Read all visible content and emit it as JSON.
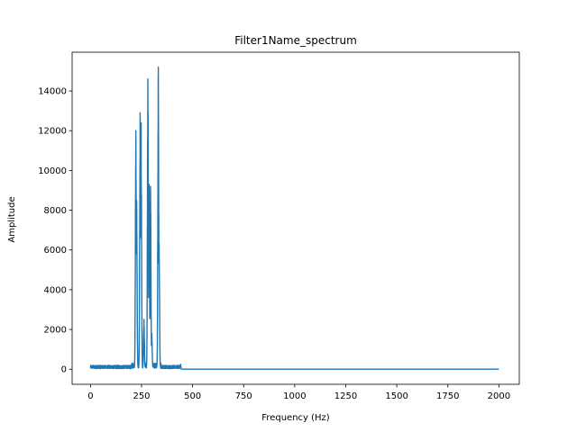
{
  "chart_data": {
    "type": "line",
    "title": "Filter1Name_spectrum",
    "xlabel": "Frequency (Hz)",
    "ylabel": "Amplitude",
    "xlim": [
      -90,
      2100
    ],
    "ylim": [
      -760,
      15950
    ],
    "xticks": [
      0,
      250,
      500,
      750,
      1000,
      1250,
      1500,
      1750,
      2000
    ],
    "yticks": [
      0,
      2000,
      4000,
      6000,
      8000,
      10000,
      12000,
      14000
    ],
    "grid": false,
    "legend": "none",
    "line_color": "#1f77b4",
    "series": [
      {
        "name": "spectrum",
        "noise_floor": {
          "x_range": [
            0,
            440
          ],
          "typical_amplitude": 150,
          "max_amplitude": 400
        },
        "peaks": [
          {
            "x": 222,
            "y": 12000
          },
          {
            "x": 226,
            "y": 8500
          },
          {
            "x": 243,
            "y": 12900
          },
          {
            "x": 248,
            "y": 12400
          },
          {
            "x": 262,
            "y": 2500
          },
          {
            "x": 281,
            "y": 14600
          },
          {
            "x": 287,
            "y": 9300
          },
          {
            "x": 294,
            "y": 9200
          },
          {
            "x": 300,
            "y": 1800
          },
          {
            "x": 332,
            "y": 15200
          },
          {
            "x": 336,
            "y": 6300
          },
          {
            "x": 441,
            "y": 250
          }
        ],
        "tail": {
          "x_range": [
            445,
            2000
          ],
          "y": 0
        }
      }
    ]
  }
}
